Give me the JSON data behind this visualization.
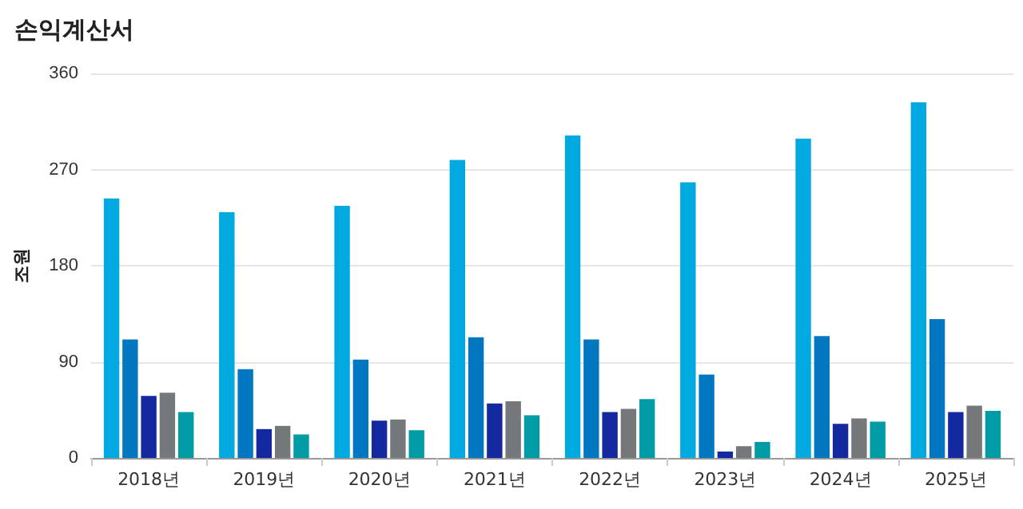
{
  "chart_data": {
    "type": "bar",
    "title": "손익계산서",
    "ylabel": "조원",
    "categories": [
      "2018년",
      "2019년",
      "2020년",
      "2021년",
      "2022년",
      "2023년",
      "2024년",
      "2025년"
    ],
    "series": [
      {
        "color": "#00a9e0",
        "values": [
          243,
          230,
          236,
          279,
          302,
          258,
          299,
          333
        ]
      },
      {
        "color": "#0077c0",
        "values": [
          111,
          83,
          92,
          113,
          111,
          78,
          114,
          130
        ]
      },
      {
        "color": "#1428a0",
        "values": [
          58,
          27,
          35,
          51,
          43,
          6,
          32,
          43
        ]
      },
      {
        "color": "#75787b",
        "values": [
          61,
          30,
          36,
          53,
          46,
          11,
          37,
          49
        ]
      },
      {
        "color": "#009ca6",
        "values": [
          43,
          22,
          26,
          40,
          55,
          15,
          34,
          44
        ]
      }
    ],
    "ylim": [
      0,
      360
    ],
    "yticks": [
      0,
      90,
      180,
      270,
      360
    ],
    "grid": "y"
  }
}
